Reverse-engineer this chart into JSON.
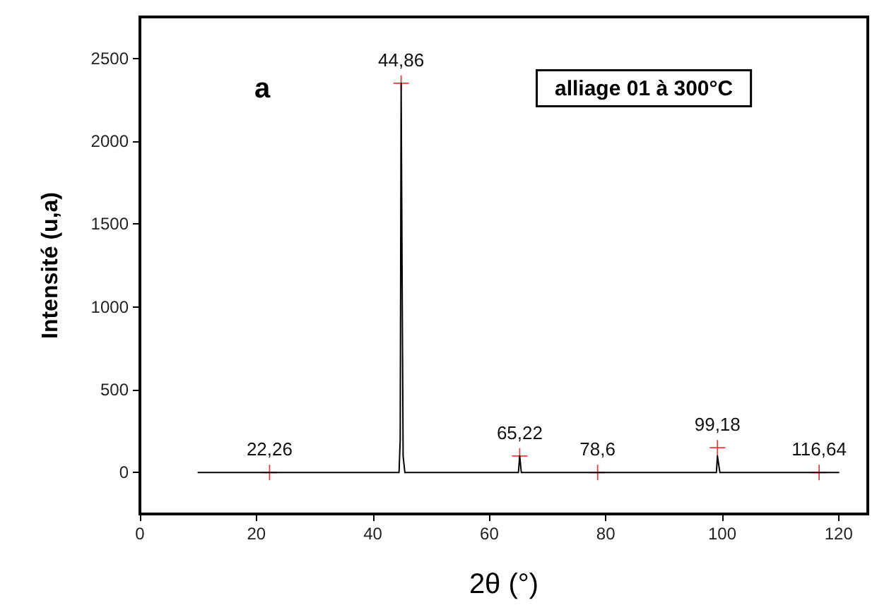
{
  "chart_data": {
    "type": "line",
    "xlabel": "2θ (°)",
    "ylabel": "Intensité (u,a)",
    "annotations": [
      "a",
      "alliage 01 à 300°C",
      {
        "text": "22,26",
        "x": 22.26,
        "y": 0
      },
      {
        "text": "44,86",
        "x": 44.86,
        "y": 2350
      },
      {
        "text": "65,22",
        "x": 65.22,
        "y": 100
      },
      {
        "text": "78,6",
        "x": 78.6,
        "y": 0
      },
      {
        "text": "99,18",
        "x": 99.18,
        "y": 150
      },
      {
        "text": "116,64",
        "x": 116.64,
        "y": 0
      }
    ],
    "xlim": [
      0,
      125
    ],
    "xticks": [
      0,
      20,
      40,
      60,
      80,
      100,
      120
    ],
    "ylim": [
      -250,
      2750
    ],
    "yticks": [
      0,
      500,
      1000,
      1500,
      2000,
      2500
    ],
    "grid": false,
    "series": [
      {
        "color": "#000000",
        "marker": "none",
        "line_style": "solid",
        "x": [
          10,
          22.26,
          44.5,
          44.7,
          44.86,
          45.0,
          45.2,
          45.5,
          65.0,
          65.22,
          65.5,
          78.6,
          99.0,
          99.18,
          99.6,
          100,
          116.64,
          120
        ],
        "values": [
          0,
          0,
          0,
          200,
          2350,
          1350,
          100,
          0,
          0,
          100,
          0,
          0,
          0,
          100,
          0,
          0,
          0,
          0
        ]
      },
      {
        "type": "scatter",
        "color": "#ff0000",
        "marker": "cross",
        "x": [
          22.26,
          44.86,
          65.22,
          78.6,
          99.18,
          116.64
        ],
        "values": [
          0,
          2350,
          100,
          0,
          150,
          0
        ]
      }
    ]
  }
}
